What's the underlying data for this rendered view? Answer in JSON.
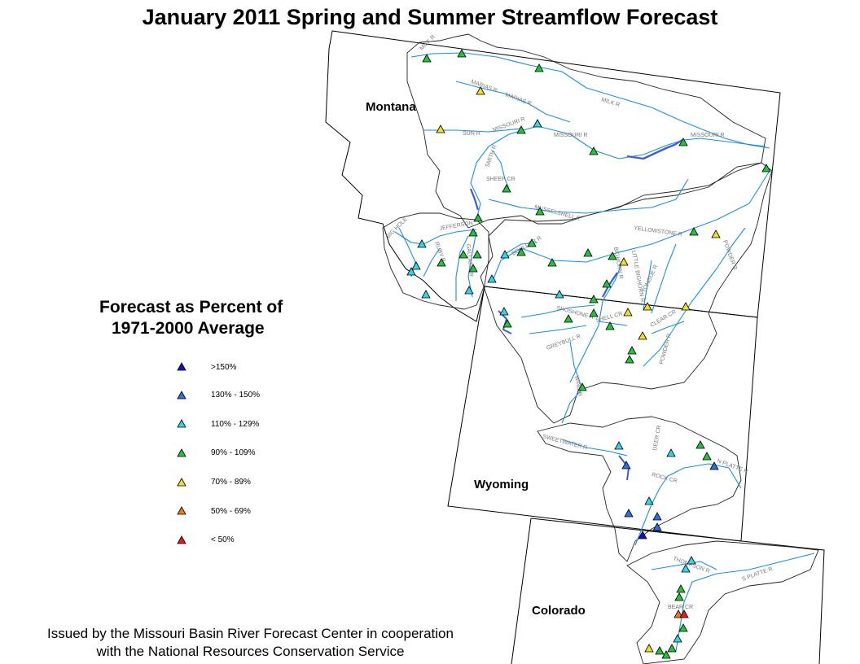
{
  "title": "January 2011 Spring and Summer Streamflow Forecast",
  "states": {
    "montana": "Montana",
    "wyoming": "Wyoming",
    "colorado": "Colorado"
  },
  "legend": {
    "title_line1": "Forecast as Percent of",
    "title_line2": "1971-2000 Average",
    "items": [
      {
        "label": ">150%",
        "color": "#1010c8"
      },
      {
        "label": "130% - 150%",
        "color": "#2a6fe0"
      },
      {
        "label": "110% - 129%",
        "color": "#33d6e6"
      },
      {
        "label": "90% - 109%",
        "color": "#22c43a"
      },
      {
        "label": "70% - 89%",
        "color": "#f0e020"
      },
      {
        "label": "50% - 69%",
        "color": "#f07818"
      },
      {
        "label": "< 50%",
        "color": "#e81c10"
      }
    ]
  },
  "footer": {
    "line1": "Issued by the Missouri Basin River Forecast Center in cooperation",
    "line2": "with the National Resources Conservation Service"
  },
  "river_labels": [
    "MILK R",
    "MARIAS R",
    "MARIAS R",
    "MILK R",
    "SUN R",
    "MISSOURI R",
    "MISSOURI R",
    "MISSOURI R",
    "SMITH R",
    "SHEEP CR",
    "MUSSELSHELL R",
    "JEFFERSON",
    "BIG HOLE",
    "RUBY R",
    "GALLATIN R",
    "BOULDER R",
    "YELLOWSTONE R",
    "POWDER R",
    "BIGHORN R",
    "LITTLE BIGHORN R",
    "TONGUE R",
    "CLEAR CR",
    "SHOSHONE R",
    "SHELL CR",
    "GREYBULL R",
    "POWDER R",
    "WIND R",
    "SWEETWATER R",
    "DEER CR",
    "N PLATTE R",
    "ROCK CR",
    "THOMPSON R",
    "S PLATTE R",
    "BEAR CR"
  ],
  "markers": [
    {
      "cat": 3
    },
    {
      "cat": 3
    },
    {
      "cat": 3
    },
    {
      "cat": 4
    },
    {
      "cat": 3
    },
    {
      "cat": 2
    },
    {
      "cat": 4
    },
    {
      "cat": 3
    },
    {
      "cat": 3
    },
    {
      "cat": 3
    },
    {
      "cat": 3
    },
    {
      "cat": 3
    },
    {
      "cat": 3
    },
    {
      "cat": 3
    },
    {
      "cat": 2
    },
    {
      "cat": 2
    },
    {
      "cat": 2
    },
    {
      "cat": 2
    },
    {
      "cat": 3
    },
    {
      "cat": 3
    },
    {
      "cat": 3
    },
    {
      "cat": 3
    },
    {
      "cat": 3
    },
    {
      "cat": 3
    },
    {
      "cat": 3
    },
    {
      "cat": 2
    },
    {
      "cat": 3
    },
    {
      "cat": 3
    },
    {
      "cat": 3
    },
    {
      "cat": 4
    },
    {
      "cat": 3
    },
    {
      "cat": 4
    },
    {
      "cat": 4
    },
    {
      "cat": 4
    },
    {
      "cat": 2
    },
    {
      "cat": 2
    },
    {
      "cat": 2
    },
    {
      "cat": 3
    },
    {
      "cat": 3
    },
    {
      "cat": 3
    },
    {
      "cat": 3
    },
    {
      "cat": 4
    },
    {
      "cat": 4
    },
    {
      "cat": 3
    },
    {
      "cat": 3
    },
    {
      "cat": 3
    },
    {
      "cat": 2
    },
    {
      "cat": 3
    },
    {
      "cat": 3
    },
    {
      "cat": 2
    },
    {
      "cat": 3
    },
    {
      "cat": 1
    },
    {
      "cat": 1
    },
    {
      "cat": 1
    },
    {
      "cat": 2
    },
    {
      "cat": 1
    },
    {
      "cat": 1
    },
    {
      "cat": 0
    },
    {
      "cat": 2
    },
    {
      "cat": 2
    },
    {
      "cat": 2
    },
    {
      "cat": 3
    },
    {
      "cat": 3
    },
    {
      "cat": 5
    },
    {
      "cat": 6
    },
    {
      "cat": 3
    },
    {
      "cat": 2
    },
    {
      "cat": 3
    },
    {
      "cat": 4
    },
    {
      "cat": 3
    },
    {
      "cat": 3
    }
  ]
}
